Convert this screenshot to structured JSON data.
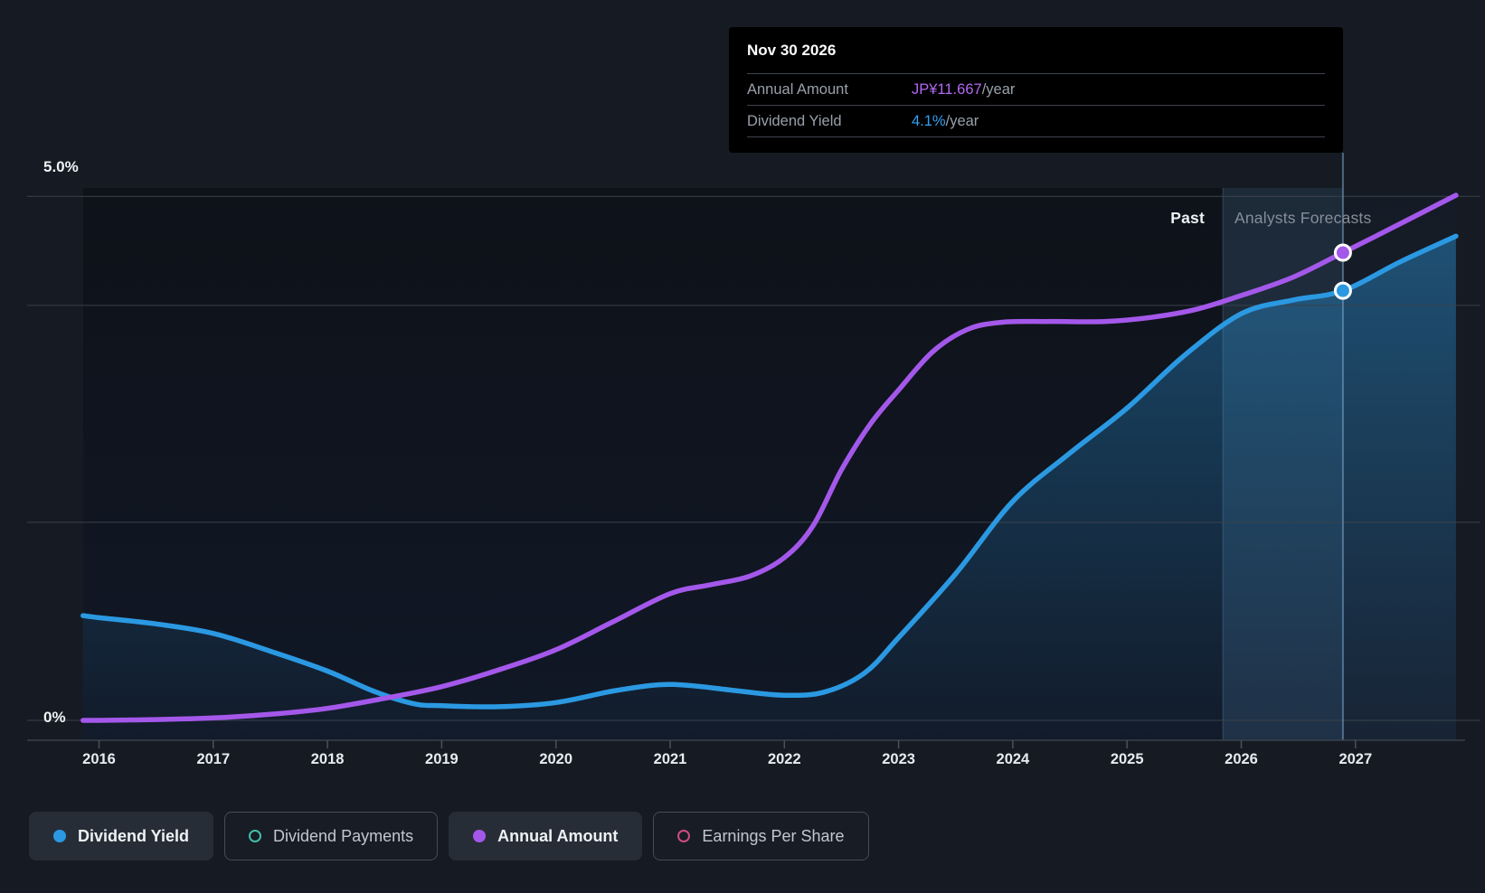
{
  "colors": {
    "background": "#151a23",
    "plot_background": "#0e1219",
    "gridline": "#3b424b",
    "axis_line": "#3a414a",
    "tooltip_bg": "#000000",
    "forecast_band": "rgba(109,160,205,0.07)",
    "hover_band": "rgba(112,172,222,0.10)",
    "marker_line": "rgba(125,168,205,0.55)"
  },
  "tooltip": {
    "date": "Nov 30 2026",
    "rows": [
      {
        "label": "Annual Amount",
        "value": "JP¥11.667",
        "suffix": "/year",
        "color": "#b269f2"
      },
      {
        "label": "Dividend Yield",
        "value": "4.1%",
        "suffix": "/year",
        "color": "#36a0f2"
      }
    ]
  },
  "region_labels": {
    "past": "Past",
    "forecast": "Analysts Forecasts"
  },
  "axis": {
    "y_top_label": "5.0%",
    "y_bottom_label": "0%"
  },
  "legend": {
    "items": [
      {
        "label": "Dividend Yield",
        "color": "#2b99e2",
        "active": true
      },
      {
        "label": "Dividend Payments",
        "color": "#45bda9",
        "active": false
      },
      {
        "label": "Annual Amount",
        "color": "#a458ea",
        "active": true
      },
      {
        "label": "Earnings Per Share",
        "color": "#cf4b84",
        "active": false
      }
    ]
  },
  "chart_data": {
    "type": "line",
    "title": "Dividend Yield and Annual Amount — past and analysts forecasts",
    "x_ticks": [
      2016,
      2017,
      2018,
      2019,
      2020,
      2021,
      2022,
      2023,
      2024,
      2025,
      2026,
      2027
    ],
    "x_range": [
      2015.86,
      2027.88
    ],
    "grid": true,
    "legend_position": "bottom",
    "y_axes": {
      "percent": {
        "min": 0,
        "max": 5.08,
        "top_label": "5.0%",
        "zero_label": "0%"
      },
      "jpy": {
        "min": 0,
        "max": 13.28
      }
    },
    "gridlines_percent": [
      5.0,
      3.96,
      1.89,
      0.0
    ],
    "forecast_start_x": 2025.84,
    "marker_x": 2026.89,
    "series": [
      {
        "name": "Dividend Yield",
        "axis": "percent",
        "color": "#2b99e2",
        "area": true,
        "points": [
          [
            2015.86,
            1.0
          ],
          [
            2016,
            0.98
          ],
          [
            2016.5,
            0.92
          ],
          [
            2017,
            0.83
          ],
          [
            2017.5,
            0.66
          ],
          [
            2018,
            0.47
          ],
          [
            2018.4,
            0.28
          ],
          [
            2018.75,
            0.16
          ],
          [
            2019,
            0.14
          ],
          [
            2019.5,
            0.13
          ],
          [
            2020,
            0.17
          ],
          [
            2020.5,
            0.28
          ],
          [
            2020.9,
            0.34
          ],
          [
            2021.2,
            0.33
          ],
          [
            2021.6,
            0.28
          ],
          [
            2022,
            0.24
          ],
          [
            2022.35,
            0.27
          ],
          [
            2022.7,
            0.45
          ],
          [
            2023,
            0.79
          ],
          [
            2023.5,
            1.4
          ],
          [
            2024,
            2.09
          ],
          [
            2024.5,
            2.55
          ],
          [
            2025,
            2.98
          ],
          [
            2025.5,
            3.48
          ],
          [
            2026,
            3.88
          ],
          [
            2026.45,
            4.01
          ],
          [
            2026.89,
            4.1
          ],
          [
            2027.4,
            4.38
          ],
          [
            2027.88,
            4.62
          ]
        ],
        "marker": {
          "x": 2026.89,
          "value": 4.1
        }
      },
      {
        "name": "Annual Amount",
        "axis": "jpy",
        "color": "#a458ea",
        "area": false,
        "points": [
          [
            2015.86,
            0.0
          ],
          [
            2016,
            0.0
          ],
          [
            2016.5,
            0.02
          ],
          [
            2017,
            0.06
          ],
          [
            2017.5,
            0.15
          ],
          [
            2018,
            0.3
          ],
          [
            2018.5,
            0.55
          ],
          [
            2019,
            0.84
          ],
          [
            2019.5,
            1.26
          ],
          [
            2020,
            1.76
          ],
          [
            2020.5,
            2.46
          ],
          [
            2021,
            3.16
          ],
          [
            2021.35,
            3.38
          ],
          [
            2021.7,
            3.6
          ],
          [
            2022,
            4.06
          ],
          [
            2022.25,
            4.85
          ],
          [
            2022.5,
            6.25
          ],
          [
            2022.75,
            7.38
          ],
          [
            2023,
            8.24
          ],
          [
            2023.3,
            9.2
          ],
          [
            2023.6,
            9.75
          ],
          [
            2023.9,
            9.93
          ],
          [
            2024.3,
            9.95
          ],
          [
            2024.8,
            9.95
          ],
          [
            2025.2,
            10.05
          ],
          [
            2025.6,
            10.25
          ],
          [
            2026,
            10.6
          ],
          [
            2026.45,
            11.05
          ],
          [
            2026.89,
            11.667
          ],
          [
            2027.4,
            12.4
          ],
          [
            2027.88,
            13.1
          ]
        ],
        "marker": {
          "x": 2026.89,
          "value": 11.667
        }
      }
    ]
  }
}
